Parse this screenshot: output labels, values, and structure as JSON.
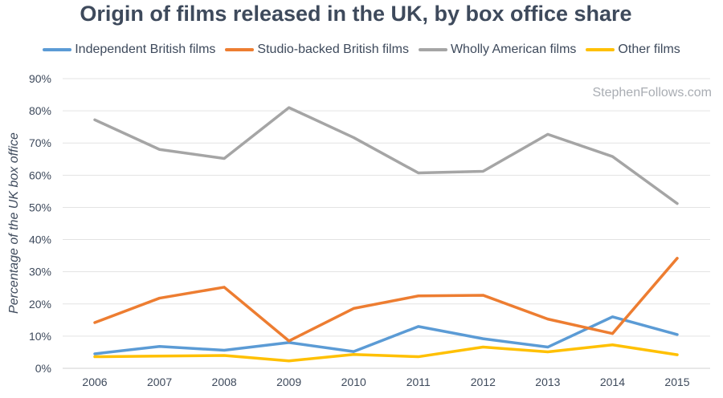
{
  "chart_data": {
    "type": "line",
    "title": "Origin of films released in the UK, by box office share",
    "ylabel": "Percentage of the UK box office",
    "xlabel": "",
    "watermark": "StephenFollows.com",
    "categories": [
      "2006",
      "2007",
      "2008",
      "2009",
      "2010",
      "2011",
      "2012",
      "2013",
      "2014",
      "2015"
    ],
    "ylim": [
      0,
      90
    ],
    "yticks": [
      "0%",
      "10%",
      "20%",
      "30%",
      "40%",
      "50%",
      "60%",
      "70%",
      "80%",
      "90%"
    ],
    "grid": true,
    "legend": "top",
    "series": [
      {
        "name": "Independent British films",
        "color": "#5b9bd5",
        "values": [
          4.5,
          6.8,
          5.6,
          8.0,
          5.2,
          13.0,
          9.2,
          6.6,
          16.0,
          10.5
        ]
      },
      {
        "name": "Studio-backed British films",
        "color": "#ed7d31",
        "values": [
          14.2,
          21.8,
          25.2,
          8.5,
          18.6,
          22.5,
          22.7,
          15.3,
          10.8,
          34.2
        ]
      },
      {
        "name": "Wholly American films",
        "color": "#a5a5a5",
        "values": [
          77.2,
          68.0,
          65.2,
          81.0,
          71.7,
          60.7,
          61.2,
          72.7,
          65.8,
          51.2
        ]
      },
      {
        "name": "Other films",
        "color": "#ffc000",
        "values": [
          3.6,
          3.8,
          4.0,
          2.3,
          4.3,
          3.6,
          6.6,
          5.1,
          7.3,
          4.2
        ]
      }
    ]
  }
}
